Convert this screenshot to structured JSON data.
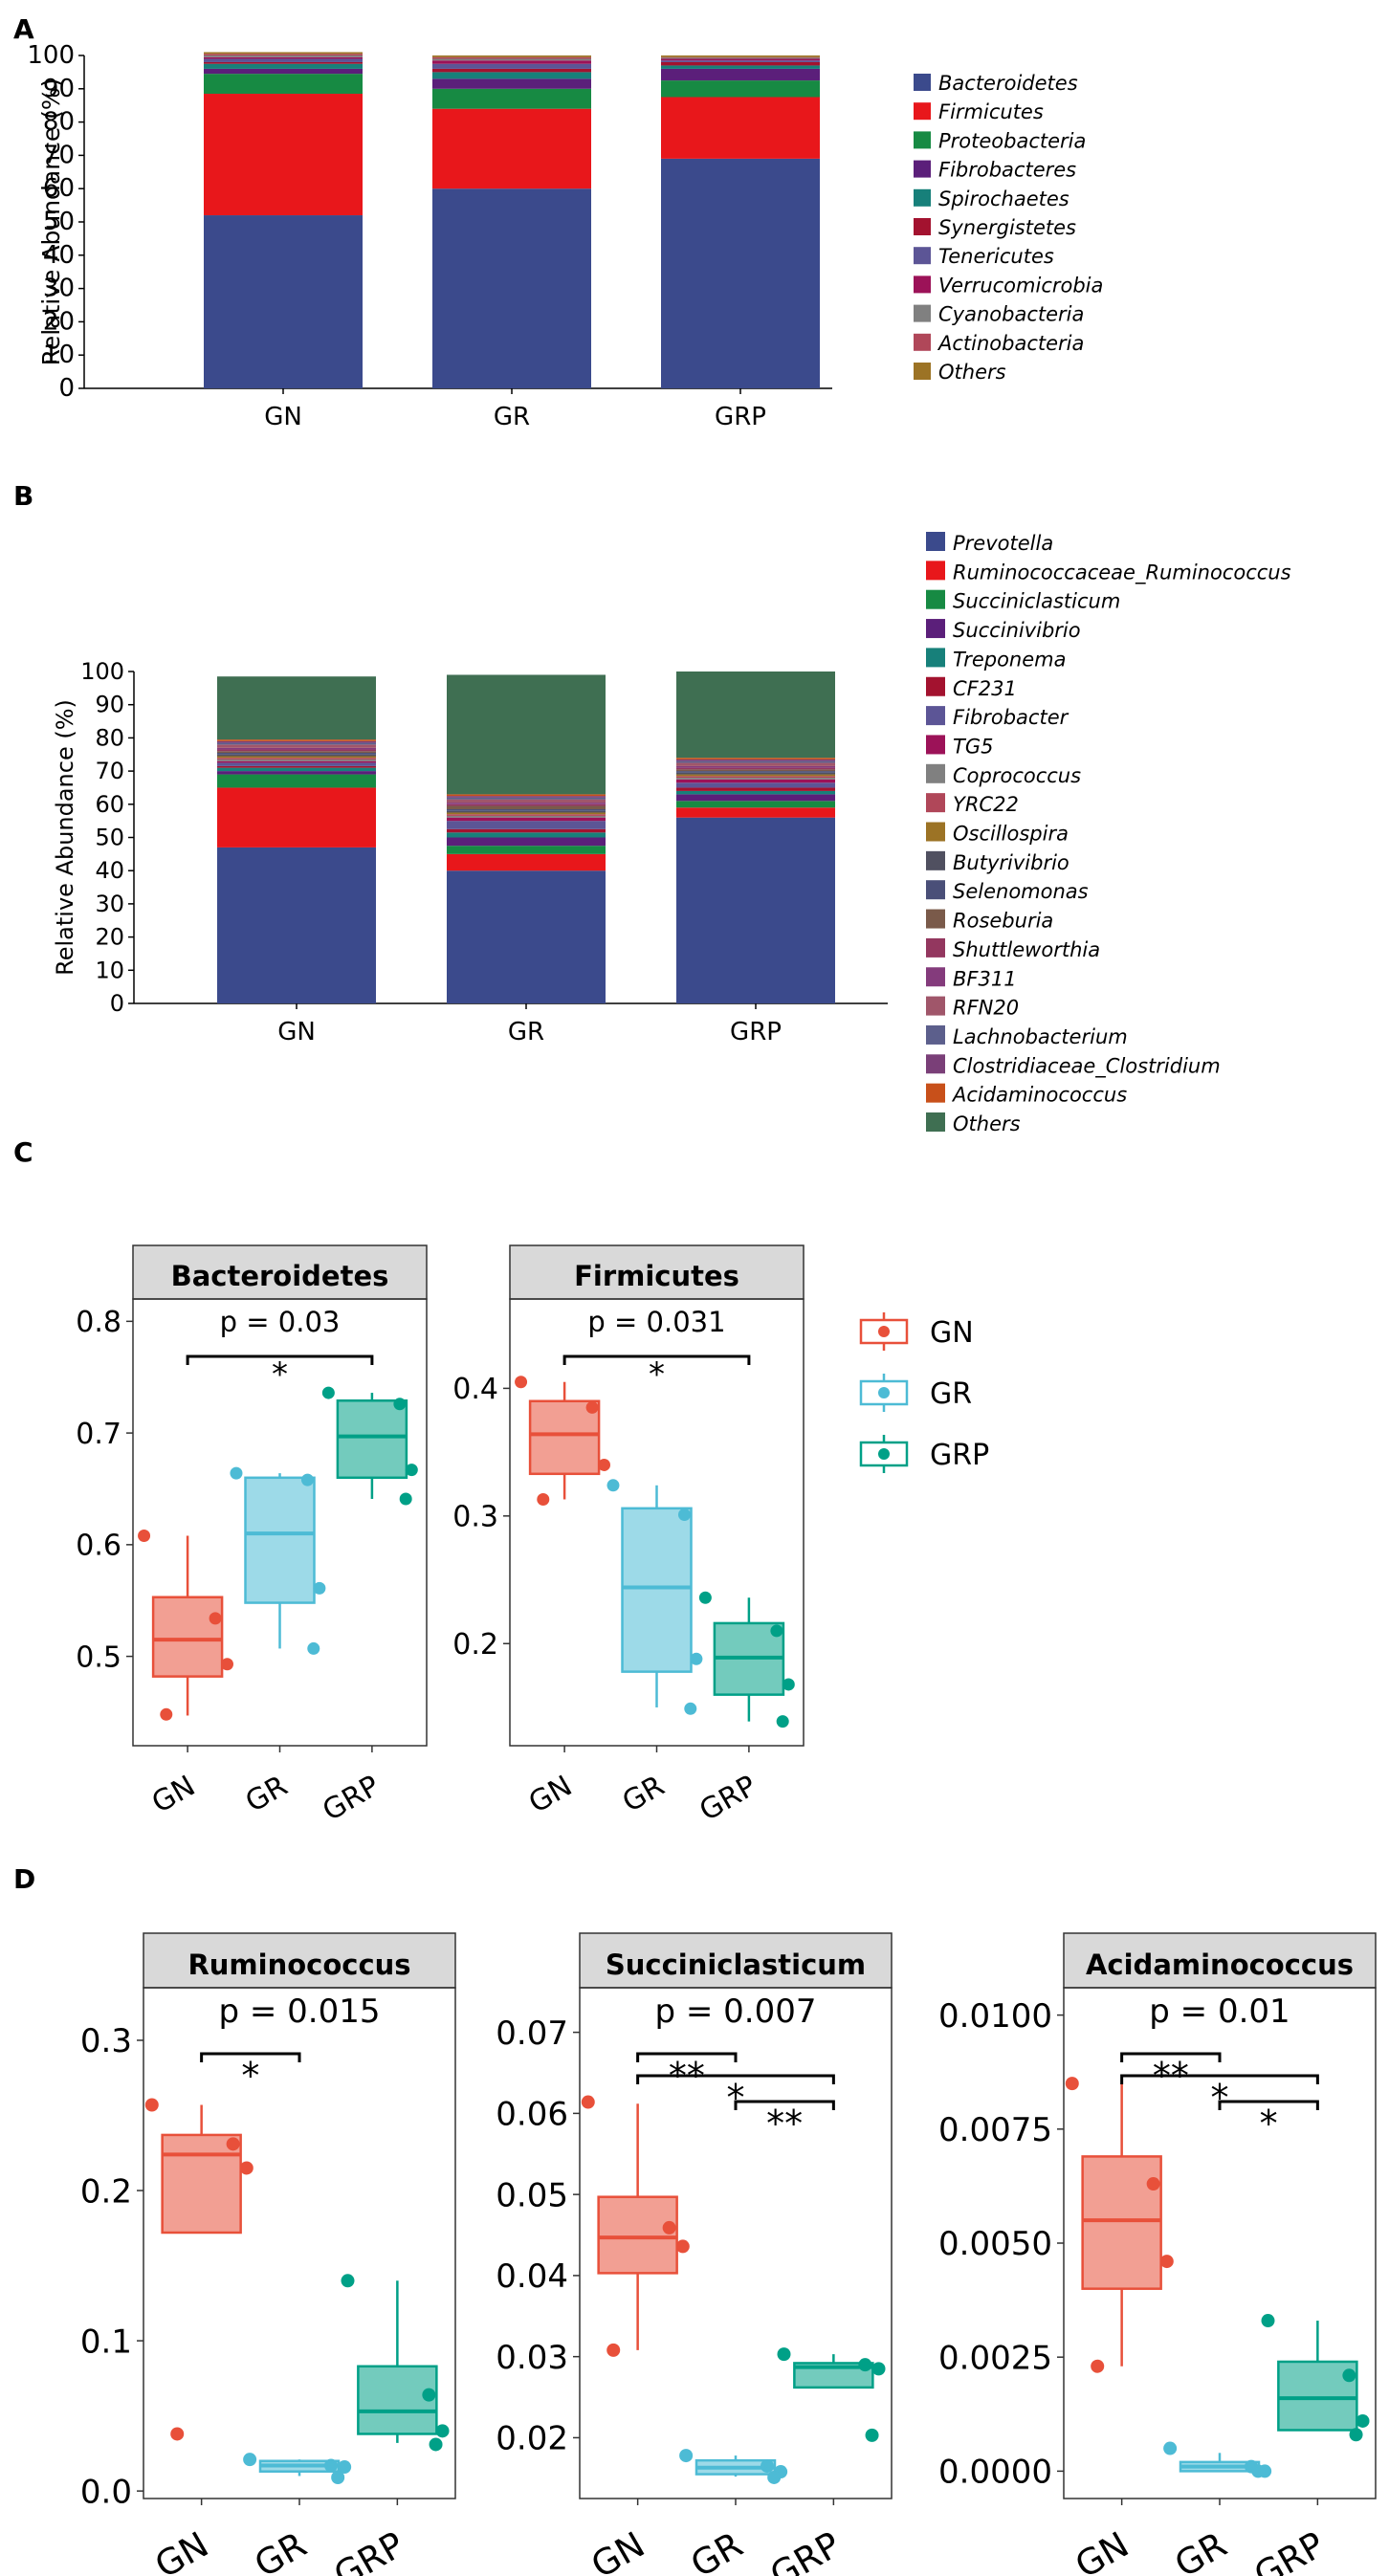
{
  "chart_data": [
    {
      "panel": "A",
      "type": "bar",
      "stacked": true,
      "ylabel": "Relative Abundance (%)",
      "ylim": [
        0,
        100
      ],
      "yticks": [
        0,
        10,
        20,
        30,
        40,
        50,
        60,
        70,
        80,
        90,
        100
      ],
      "categories": [
        "GN",
        "GR",
        "GRP"
      ],
      "series": [
        {
          "name": "Bacteroidetes",
          "color": "#3B4A8C",
          "values": [
            52,
            60,
            69
          ]
        },
        {
          "name": "Firmicutes",
          "color": "#E8171B",
          "values": [
            36.5,
            24,
            18.5
          ]
        },
        {
          "name": "Proteobacteria",
          "color": "#178A43",
          "values": [
            6,
            6,
            5
          ]
        },
        {
          "name": "Fibrobacteres",
          "color": "#5B1F7A",
          "values": [
            1.5,
            3,
            3.5
          ]
        },
        {
          "name": "Spirochaetes",
          "color": "#17807A",
          "values": [
            1.5,
            2,
            1
          ]
        },
        {
          "name": "Synergistetes",
          "color": "#A3122F",
          "values": [
            0.5,
            1,
            1
          ]
        },
        {
          "name": "Tenericutes",
          "color": "#5C5596",
          "values": [
            1,
            1.5,
            0.5
          ]
        },
        {
          "name": "Verrucomicrobia",
          "color": "#9C1258",
          "values": [
            0.5,
            1,
            0.5
          ]
        },
        {
          "name": "Cyanobacteria",
          "color": "#808080",
          "values": [
            0.5,
            0.5,
            0.3
          ]
        },
        {
          "name": "Actinobacteria",
          "color": "#B04759",
          "values": [
            0.5,
            0.5,
            0.2
          ]
        },
        {
          "name": "Others",
          "color": "#9C7325",
          "values": [
            0.5,
            0.5,
            0.5
          ]
        }
      ]
    },
    {
      "panel": "B",
      "type": "bar",
      "stacked": true,
      "ylabel": "Relative Abundance (%)",
      "ylim": [
        0,
        100
      ],
      "yticks": [
        0,
        10,
        20,
        30,
        40,
        50,
        60,
        70,
        80,
        90,
        100
      ],
      "categories": [
        "GN",
        "GR",
        "GRP"
      ],
      "series": [
        {
          "name": "Prevotella",
          "color": "#3B4A8C",
          "values": [
            47,
            40,
            56
          ]
        },
        {
          "name": "Ruminococcaceae_Ruminococcus",
          "color": "#E8171B",
          "values": [
            18,
            5,
            3
          ]
        },
        {
          "name": "Succiniclasticum",
          "color": "#178A43",
          "values": [
            4,
            2.5,
            2
          ]
        },
        {
          "name": "Succinivibrio",
          "color": "#5B1F7A",
          "values": [
            1,
            2.5,
            2
          ]
        },
        {
          "name": "Treponema",
          "color": "#17807A",
          "values": [
            1,
            1.5,
            1
          ]
        },
        {
          "name": "CF231",
          "color": "#A3122F",
          "values": [
            0.5,
            1,
            1
          ]
        },
        {
          "name": "Fibrobacter",
          "color": "#5C5596",
          "values": [
            1,
            2.5,
            1.5
          ]
        },
        {
          "name": "TG5",
          "color": "#9C1258",
          "values": [
            0.5,
            1,
            1
          ]
        },
        {
          "name": "Coprococcus",
          "color": "#808080",
          "values": [
            0.5,
            0.5,
            0.5
          ]
        },
        {
          "name": "YRC22",
          "color": "#B04759",
          "values": [
            0.5,
            0.5,
            0.5
          ]
        },
        {
          "name": "Oscillospira",
          "color": "#9C7325",
          "values": [
            0.5,
            0.5,
            0.5
          ]
        },
        {
          "name": "Butyrivibrio",
          "color": "#505060",
          "values": [
            0.5,
            0.5,
            0.5
          ]
        },
        {
          "name": "Selenomonas",
          "color": "#4A4F78",
          "values": [
            0.5,
            0.5,
            0.5
          ]
        },
        {
          "name": "Roseburia",
          "color": "#7A5A4A",
          "values": [
            0.5,
            1,
            0.5
          ]
        },
        {
          "name": "Shuttleworthia",
          "color": "#93375F",
          "values": [
            0.5,
            0.5,
            0.5
          ]
        },
        {
          "name": "BF311",
          "color": "#843B7C",
          "values": [
            0.5,
            0.5,
            0.5
          ]
        },
        {
          "name": "RFN20",
          "color": "#A0566A",
          "values": [
            1,
            1,
            1
          ]
        },
        {
          "name": "Lachnobacterium",
          "color": "#5C5F8C",
          "values": [
            0.5,
            0.5,
            0.5
          ]
        },
        {
          "name": "Clostridiaceae_Clostridium",
          "color": "#7A3F78",
          "values": [
            0.5,
            0.5,
            0.5
          ]
        },
        {
          "name": "Acidaminococcus",
          "color": "#C8501A",
          "values": [
            0.5,
            0.5,
            0.5
          ]
        },
        {
          "name": "Others",
          "color": "#3F6F52",
          "values": [
            19,
            36,
            26
          ]
        }
      ]
    },
    {
      "panel": "C",
      "type": "box",
      "groups": [
        "GN",
        "GR",
        "GRP"
      ],
      "group_colors": {
        "GN": "#E8503A",
        "GR": "#4DBBD5",
        "GRP": "#00A087"
      },
      "legend": [
        "GN",
        "GR",
        "GRP"
      ],
      "facets": [
        {
          "title": "Bacteroidetes",
          "ylim": [
            0.42,
            0.82
          ],
          "yticks": [
            0.5,
            0.6,
            0.7,
            0.8
          ],
          "ytick_labels": [
            "0.5",
            "0.6",
            "0.7",
            "0.8"
          ],
          "pvalue": "p = 0.03",
          "boxes": [
            {
              "group": "GN",
              "q1": 0.482,
              "median": 0.515,
              "q3": 0.553,
              "lo": 0.447,
              "hi": 0.608,
              "points": [
                0.608,
                0.534,
                0.493,
                0.448
              ]
            },
            {
              "group": "GR",
              "q1": 0.548,
              "median": 0.61,
              "q3": 0.66,
              "lo": 0.507,
              "hi": 0.664,
              "points": [
                0.664,
                0.658,
                0.561,
                0.507
              ]
            },
            {
              "group": "GRP",
              "q1": 0.66,
              "median": 0.697,
              "q3": 0.729,
              "lo": 0.641,
              "hi": 0.736,
              "points": [
                0.736,
                0.726,
                0.667,
                0.641
              ]
            }
          ],
          "brackets": [
            {
              "from": "GN",
              "to": "GRP",
              "label": "*"
            }
          ]
        },
        {
          "title": "Firmicutes",
          "ylim": [
            0.12,
            0.47
          ],
          "yticks": [
            0.2,
            0.3,
            0.4
          ],
          "ytick_labels": [
            "0.2",
            "0.3",
            "0.4"
          ],
          "pvalue": "p = 0.031",
          "boxes": [
            {
              "group": "GN",
              "q1": 0.333,
              "median": 0.364,
              "q3": 0.39,
              "lo": 0.313,
              "hi": 0.405,
              "points": [
                0.405,
                0.385,
                0.34,
                0.313
              ]
            },
            {
              "group": "GR",
              "q1": 0.178,
              "median": 0.244,
              "q3": 0.306,
              "lo": 0.15,
              "hi": 0.324,
              "points": [
                0.324,
                0.301,
                0.188,
                0.149
              ]
            },
            {
              "group": "GRP",
              "q1": 0.16,
              "median": 0.189,
              "q3": 0.216,
              "lo": 0.139,
              "hi": 0.236,
              "points": [
                0.236,
                0.21,
                0.168,
                0.139
              ]
            }
          ],
          "brackets": [
            {
              "from": "GN",
              "to": "GRP",
              "label": "*"
            }
          ]
        }
      ]
    },
    {
      "panel": "D",
      "type": "box",
      "groups": [
        "GN",
        "GR",
        "GRP"
      ],
      "group_colors": {
        "GN": "#E8503A",
        "GR": "#4DBBD5",
        "GRP": "#00A087"
      },
      "facets": [
        {
          "title": "Ruminococcus",
          "ylim": [
            -0.005,
            0.335
          ],
          "yticks": [
            0.0,
            0.1,
            0.2,
            0.3
          ],
          "ytick_labels": [
            "0.0",
            "0.1",
            "0.2",
            "0.3"
          ],
          "pvalue": "p = 0.015",
          "boxes": [
            {
              "group": "GN",
              "q1": 0.172,
              "median": 0.224,
              "q3": 0.237,
              "lo": 0.172,
              "hi": 0.257,
              "points": [
                0.257,
                0.231,
                0.215,
                0.038
              ]
            },
            {
              "group": "GR",
              "q1": 0.013,
              "median": 0.017,
              "q3": 0.02,
              "lo": 0.01,
              "hi": 0.021,
              "points": [
                0.021,
                0.017,
                0.016,
                0.009
              ]
            },
            {
              "group": "GRP",
              "q1": 0.038,
              "median": 0.053,
              "q3": 0.083,
              "lo": 0.032,
              "hi": 0.14,
              "points": [
                0.14,
                0.064,
                0.04,
                0.031
              ]
            }
          ],
          "brackets": [
            {
              "from": "GN",
              "to": "GR",
              "label": "*"
            }
          ]
        },
        {
          "title": "Succiniclasticum",
          "ylim": [
            0.0125,
            0.0755
          ],
          "yticks": [
            0.02,
            0.03,
            0.04,
            0.05,
            0.06,
            0.07
          ],
          "ytick_labels": [
            "0.02",
            "0.03",
            "0.04",
            "0.05",
            "0.06",
            "0.07"
          ],
          "pvalue": "p = 0.007",
          "boxes": [
            {
              "group": "GN",
              "q1": 0.0403,
              "median": 0.0447,
              "q3": 0.0497,
              "lo": 0.0308,
              "hi": 0.0612,
              "points": [
                0.0614,
                0.0459,
                0.0436,
                0.0308
              ]
            },
            {
              "group": "GR",
              "q1": 0.0155,
              "median": 0.0163,
              "q3": 0.0172,
              "lo": 0.0152,
              "hi": 0.0178,
              "points": [
                0.0178,
                0.0165,
                0.0158,
                0.0151
              ]
            },
            {
              "group": "GRP",
              "q1": 0.0262,
              "median": 0.0287,
              "q3": 0.0292,
              "lo": 0.0262,
              "hi": 0.0303,
              "points": [
                0.0303,
                0.029,
                0.0285,
                0.0203
              ]
            }
          ],
          "brackets": [
            {
              "from": "GN",
              "to": "GR",
              "label": "**"
            },
            {
              "from": "GN",
              "to": "GRP",
              "label": "*"
            },
            {
              "from": "GR",
              "to": "GRP",
              "label": "**"
            }
          ]
        },
        {
          "title": "Acidaminococcus",
          "ylim": [
            -0.0006,
            0.0106
          ],
          "yticks": [
            0.0,
            0.0025,
            0.005,
            0.0075,
            0.01
          ],
          "ytick_labels": [
            "0.0000",
            "0.0025",
            "0.0050",
            "0.0075",
            "0.0100"
          ],
          "pvalue": "p = 0.01",
          "boxes": [
            {
              "group": "GN",
              "q1": 0.004,
              "median": 0.0055,
              "q3": 0.0069,
              "lo": 0.0023,
              "hi": 0.0085,
              "points": [
                0.0085,
                0.0063,
                0.0046,
                0.0023
              ]
            },
            {
              "group": "GR",
              "q1": 0.0,
              "median": 0.0001,
              "q3": 0.0002,
              "lo": 0.0,
              "hi": 0.0004,
              "points": [
                0.0005,
                0.0001,
                0.0,
                0.0
              ]
            },
            {
              "group": "GRP",
              "q1": 0.0009,
              "median": 0.0016,
              "q3": 0.0024,
              "lo": 0.0009,
              "hi": 0.0033,
              "points": [
                0.0033,
                0.0021,
                0.0011,
                0.0008
              ]
            }
          ],
          "brackets": [
            {
              "from": "GN",
              "to": "GR",
              "label": "**"
            },
            {
              "from": "GN",
              "to": "GRP",
              "label": "*"
            },
            {
              "from": "GR",
              "to": "GRP",
              "label": "*"
            }
          ]
        }
      ]
    }
  ]
}
